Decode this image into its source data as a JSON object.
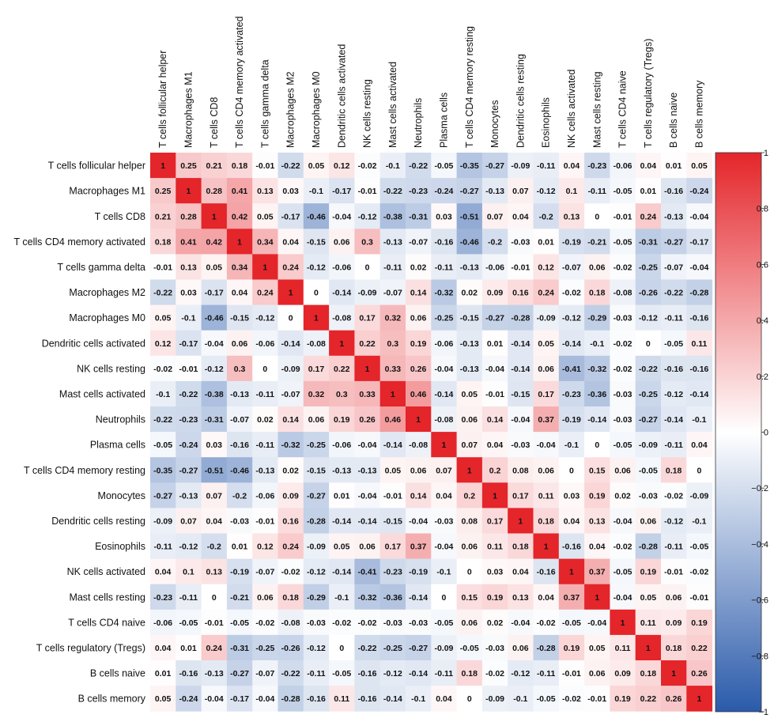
{
  "chart_data": {
    "type": "heatmap",
    "variables": [
      "T cells follicular helper",
      "Macrophages M1",
      "T cells CD8",
      "T cells CD4 memory activated",
      "T cells gamma delta",
      "Macrophages M2",
      "Macrophages M0",
      "Dendritic cells activated",
      "NK cells resting",
      "Mast cells activated",
      "Neutrophils",
      "Plasma cells",
      "T cells CD4 memory resting",
      "Monocytes",
      "Dendritic cells resting",
      "Eosinophils",
      "NK cells activated",
      "Mast cells resting",
      "T cells CD4 naive",
      "T cells regulatory (Tregs)",
      "B cells naive",
      "B cells memory"
    ],
    "matrix": [
      [
        1,
        0.25,
        0.21,
        0.18,
        -0.01,
        -0.22,
        0.05,
        0.12,
        -0.02,
        -0.1,
        -0.22,
        -0.05,
        -0.35,
        -0.27,
        -0.09,
        -0.11,
        0.04,
        -0.23,
        -0.06,
        0.04,
        0.01,
        0.05
      ],
      [
        0.25,
        1,
        0.28,
        0.41,
        0.13,
        0.03,
        -0.1,
        -0.17,
        -0.01,
        -0.22,
        -0.23,
        -0.24,
        -0.27,
        -0.13,
        0.07,
        -0.12,
        0.1,
        -0.11,
        -0.05,
        0.01,
        -0.16,
        -0.24
      ],
      [
        0.21,
        0.28,
        1,
        0.42,
        0.05,
        -0.17,
        -0.46,
        -0.04,
        -0.12,
        -0.38,
        -0.31,
        0.03,
        -0.51,
        0.07,
        0.04,
        -0.2,
        0.13,
        0,
        -0.01,
        0.24,
        -0.13,
        -0.04
      ],
      [
        0.18,
        0.41,
        0.42,
        1,
        0.34,
        0.04,
        -0.15,
        0.06,
        0.3,
        -0.13,
        -0.07,
        -0.16,
        -0.46,
        -0.2,
        -0.03,
        0.01,
        -0.19,
        -0.21,
        -0.05,
        -0.31,
        -0.27,
        -0.17
      ],
      [
        -0.01,
        0.13,
        0.05,
        0.34,
        1,
        0.24,
        -0.12,
        -0.06,
        0,
        -0.11,
        0.02,
        -0.11,
        -0.13,
        -0.06,
        -0.01,
        0.12,
        -0.07,
        0.06,
        -0.02,
        -0.25,
        -0.07,
        -0.04
      ],
      [
        -0.22,
        0.03,
        -0.17,
        0.04,
        0.24,
        1,
        0,
        -0.14,
        -0.09,
        -0.07,
        0.14,
        -0.32,
        0.02,
        0.09,
        0.16,
        0.24,
        -0.02,
        0.18,
        -0.08,
        -0.26,
        -0.22,
        -0.28
      ],
      [
        0.05,
        -0.1,
        -0.46,
        -0.15,
        -0.12,
        0,
        1,
        -0.08,
        0.17,
        0.32,
        0.06,
        -0.25,
        -0.15,
        -0.27,
        -0.28,
        -0.09,
        -0.12,
        -0.29,
        -0.03,
        -0.12,
        -0.11,
        -0.16
      ],
      [
        0.12,
        -0.17,
        -0.04,
        0.06,
        -0.06,
        -0.14,
        -0.08,
        1,
        0.22,
        0.3,
        0.19,
        -0.06,
        -0.13,
        0.01,
        -0.14,
        0.05,
        -0.14,
        -0.1,
        -0.02,
        0,
        -0.05,
        0.11
      ],
      [
        -0.02,
        -0.01,
        -0.12,
        0.3,
        0,
        -0.09,
        0.17,
        0.22,
        1,
        0.33,
        0.26,
        -0.04,
        -0.13,
        -0.04,
        -0.14,
        0.06,
        -0.41,
        -0.32,
        -0.02,
        -0.22,
        -0.16,
        -0.16
      ],
      [
        -0.1,
        -0.22,
        -0.38,
        -0.13,
        -0.11,
        -0.07,
        0.32,
        0.3,
        0.33,
        1,
        0.46,
        -0.14,
        0.05,
        -0.01,
        -0.15,
        0.17,
        -0.23,
        -0.36,
        -0.03,
        -0.25,
        -0.12,
        -0.14
      ],
      [
        -0.22,
        -0.23,
        -0.31,
        -0.07,
        0.02,
        0.14,
        0.06,
        0.19,
        0.26,
        0.46,
        1,
        -0.08,
        0.06,
        0.14,
        -0.04,
        0.37,
        -0.19,
        -0.14,
        -0.03,
        -0.27,
        -0.14,
        -0.1
      ],
      [
        -0.05,
        -0.24,
        0.03,
        -0.16,
        -0.11,
        -0.32,
        -0.25,
        -0.06,
        -0.04,
        -0.14,
        -0.08,
        1,
        0.07,
        0.04,
        -0.03,
        -0.04,
        -0.1,
        0,
        -0.05,
        -0.09,
        -0.11,
        0.04
      ],
      [
        -0.35,
        -0.27,
        -0.51,
        -0.46,
        -0.13,
        0.02,
        -0.15,
        -0.13,
        -0.13,
        0.05,
        0.06,
        0.07,
        1,
        0.2,
        0.08,
        0.06,
        0,
        0.15,
        0.06,
        -0.05,
        0.18,
        0
      ],
      [
        -0.27,
        -0.13,
        0.07,
        -0.2,
        -0.06,
        0.09,
        -0.27,
        0.01,
        -0.04,
        -0.01,
        0.14,
        0.04,
        0.2,
        1,
        0.17,
        0.11,
        0.03,
        0.19,
        0.02,
        -0.03,
        -0.02,
        -0.09
      ],
      [
        -0.09,
        0.07,
        0.04,
        -0.03,
        -0.01,
        0.16,
        -0.28,
        -0.14,
        -0.14,
        -0.15,
        -0.04,
        -0.03,
        0.08,
        0.17,
        1,
        0.18,
        0.04,
        0.13,
        -0.04,
        0.06,
        -0.12,
        -0.1
      ],
      [
        -0.11,
        -0.12,
        -0.2,
        0.01,
        0.12,
        0.24,
        -0.09,
        0.05,
        0.06,
        0.17,
        0.37,
        -0.04,
        0.06,
        0.11,
        0.18,
        1,
        -0.16,
        0.04,
        -0.02,
        -0.28,
        -0.11,
        -0.05
      ],
      [
        0.04,
        0.1,
        0.13,
        -0.19,
        -0.07,
        -0.02,
        -0.12,
        -0.14,
        -0.41,
        -0.23,
        -0.19,
        -0.1,
        0,
        0.03,
        0.04,
        -0.16,
        1,
        0.37,
        -0.05,
        0.19,
        -0.01,
        -0.02
      ],
      [
        -0.23,
        -0.11,
        0,
        -0.21,
        0.06,
        0.18,
        -0.29,
        -0.1,
        -0.32,
        -0.36,
        -0.14,
        0,
        0.15,
        0.19,
        0.13,
        0.04,
        0.37,
        1,
        -0.04,
        0.05,
        0.06,
        -0.01
      ],
      [
        -0.06,
        -0.05,
        -0.01,
        -0.05,
        -0.02,
        -0.08,
        -0.03,
        -0.02,
        -0.02,
        -0.03,
        -0.03,
        -0.05,
        0.06,
        0.02,
        -0.04,
        -0.02,
        -0.05,
        -0.04,
        1,
        0.11,
        0.09,
        0.19
      ],
      [
        0.04,
        0.01,
        0.24,
        -0.31,
        -0.25,
        -0.26,
        -0.12,
        0,
        -0.22,
        -0.25,
        -0.27,
        -0.09,
        -0.05,
        -0.03,
        0.06,
        -0.28,
        0.19,
        0.05,
        0.11,
        1,
        0.18,
        0.22
      ],
      [
        0.01,
        -0.16,
        -0.13,
        -0.27,
        -0.07,
        -0.22,
        -0.11,
        -0.05,
        -0.16,
        -0.12,
        -0.14,
        -0.11,
        0.18,
        -0.02,
        -0.12,
        -0.11,
        -0.01,
        0.06,
        0.09,
        0.18,
        1,
        0.26
      ],
      [
        0.05,
        -0.24,
        -0.04,
        -0.17,
        -0.04,
        -0.28,
        -0.16,
        0.11,
        -0.16,
        -0.14,
        -0.1,
        0.04,
        0,
        -0.09,
        -0.1,
        -0.05,
        -0.02,
        -0.01,
        0.19,
        0.22,
        0.26,
        1
      ]
    ],
    "value_range": [
      -1,
      1
    ],
    "colorbar_ticks": [
      "1",
      "0.8",
      "0.6",
      "0.4",
      "0.2",
      "0",
      "−0.2",
      "−0.4",
      "−0.6",
      "−0.8",
      "−1"
    ],
    "colors": {
      "negative": "#2a5aaa",
      "zero": "#ffffff",
      "positive": "#e4252a"
    },
    "legend": "colorbar-right"
  }
}
